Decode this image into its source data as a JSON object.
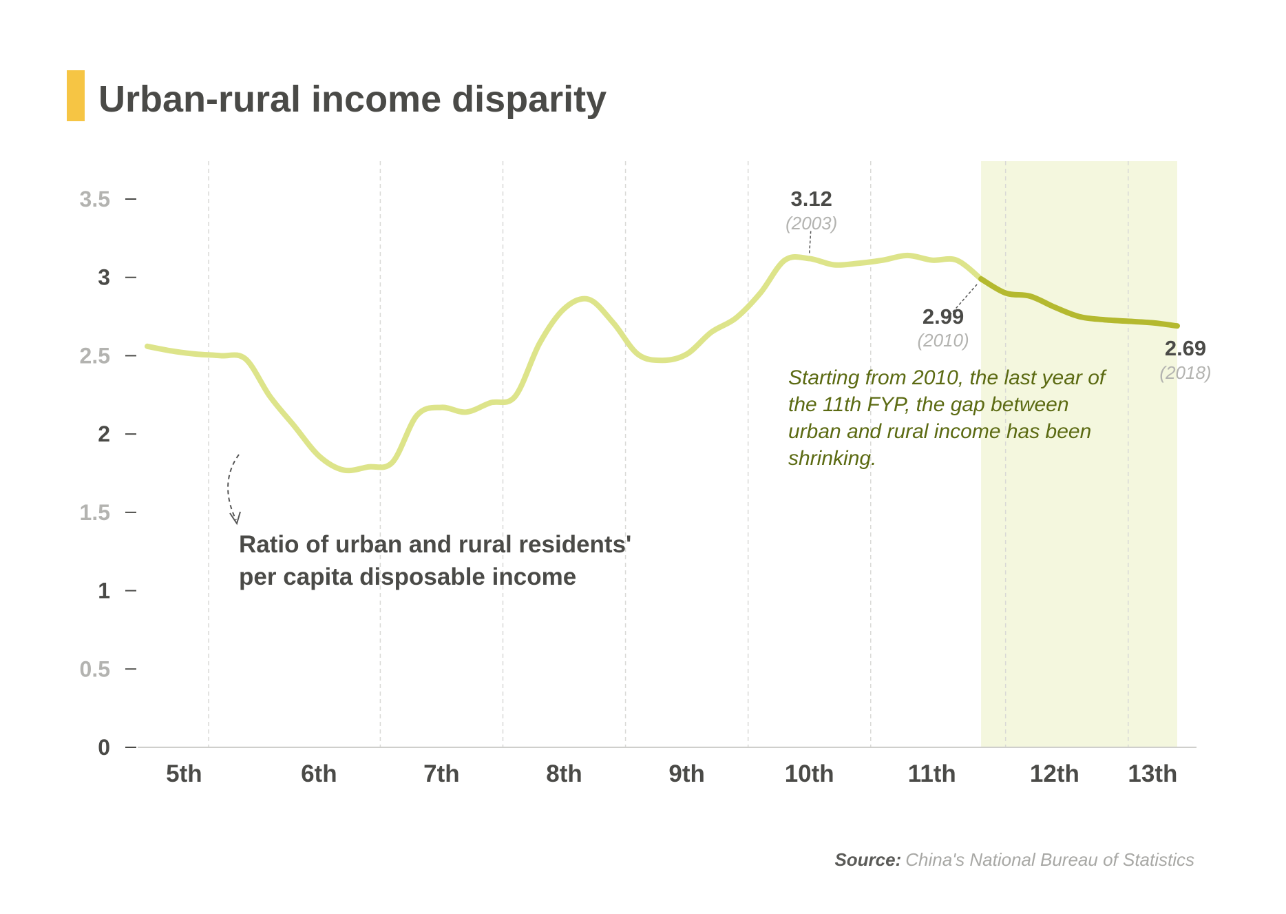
{
  "colors": {
    "accent_bar": "#f6c544",
    "line_before": "#dde48a",
    "line_after": "#b4b92f",
    "highlight_band": "#f4f7de",
    "note_text": "#5b6a12",
    "axis_text_dark": "#4a4a47",
    "axis_text_light": "#b3b3b0"
  },
  "chart_data": {
    "type": "line",
    "title": "Urban-rural income disparity",
    "xlabel": "",
    "ylabel": "",
    "ylim": [
      0,
      3.5
    ],
    "y_ticks": [
      {
        "value": 0,
        "label": "0",
        "tone": "dark"
      },
      {
        "value": 0.5,
        "label": "0.5",
        "tone": "light"
      },
      {
        "value": 1,
        "label": "1",
        "tone": "dark"
      },
      {
        "value": 1.5,
        "label": "1.5",
        "tone": "light"
      },
      {
        "value": 2,
        "label": "2",
        "tone": "dark"
      },
      {
        "value": 2.5,
        "label": "2.5",
        "tone": "light"
      },
      {
        "value": 3,
        "label": "3",
        "tone": "dark"
      },
      {
        "value": 3.5,
        "label": "3.5",
        "tone": "light"
      }
    ],
    "xlim": [
      1976,
      2018
    ],
    "x_periods": [
      {
        "label": "5th",
        "center": 1977.5
      },
      {
        "label": "6th",
        "center": 1983
      },
      {
        "label": "7th",
        "center": 1988
      },
      {
        "label": "8th",
        "center": 1993
      },
      {
        "label": "9th",
        "center": 1998
      },
      {
        "label": "10th",
        "center": 2003
      },
      {
        "label": "11th",
        "center": 2008
      },
      {
        "label": "12th",
        "center": 2013
      },
      {
        "label": "13th",
        "center": 2017
      }
    ],
    "period_dividers": [
      1978.5,
      1985.5,
      1990.5,
      1995.5,
      2000.5,
      2005.5,
      2011,
      2016
    ],
    "highlight_range": [
      2010,
      2018
    ],
    "series": [
      {
        "points": [
          [
            1976,
            2.56
          ],
          [
            1977,
            2.53
          ],
          [
            1978,
            2.51
          ],
          [
            1979,
            2.5
          ],
          [
            1980,
            2.48
          ],
          [
            1981,
            2.24
          ],
          [
            1982,
            2.05
          ],
          [
            1983,
            1.86
          ],
          [
            1984,
            1.77
          ],
          [
            1985,
            1.79
          ],
          [
            1986,
            1.82
          ],
          [
            1987,
            2.12
          ],
          [
            1988,
            2.17
          ],
          [
            1989,
            2.14
          ],
          [
            1990,
            2.2
          ],
          [
            1991,
            2.24
          ],
          [
            1992,
            2.58
          ],
          [
            1993,
            2.8
          ],
          [
            1994,
            2.86
          ],
          [
            1995,
            2.71
          ],
          [
            1996,
            2.51
          ],
          [
            1997,
            2.47
          ],
          [
            1998,
            2.51
          ],
          [
            1999,
            2.65
          ],
          [
            2000,
            2.74
          ],
          [
            2001,
            2.9
          ],
          [
            2002,
            3.11
          ],
          [
            2003,
            3.12
          ],
          [
            2004,
            3.08
          ],
          [
            2005,
            3.09
          ],
          [
            2006,
            3.11
          ],
          [
            2007,
            3.14
          ],
          [
            2008,
            3.11
          ],
          [
            2009,
            3.11
          ],
          [
            2010,
            2.99
          ],
          [
            2011,
            2.9
          ],
          [
            2012,
            2.88
          ],
          [
            2013,
            2.81
          ],
          [
            2014,
            2.75
          ],
          [
            2015,
            2.73
          ],
          [
            2016,
            2.72
          ],
          [
            2017,
            2.71
          ],
          [
            2018,
            2.69
          ]
        ]
      }
    ],
    "annotations": [
      {
        "value": "3.12",
        "year": "(2003)"
      },
      {
        "value": "2.99",
        "year": "(2010)"
      },
      {
        "value": "2.69",
        "year": "(2018)"
      }
    ],
    "series_label_lines": [
      "Ratio of urban and rural residents'",
      "per capita disposable income"
    ],
    "note_lines": [
      "Starting from 2010, the last year of",
      "the 11th FYP, the gap between",
      "urban and rural income has been",
      "shrinking."
    ],
    "source": {
      "lead": "Source:",
      "text": "China's National Bureau of Statistics"
    }
  }
}
